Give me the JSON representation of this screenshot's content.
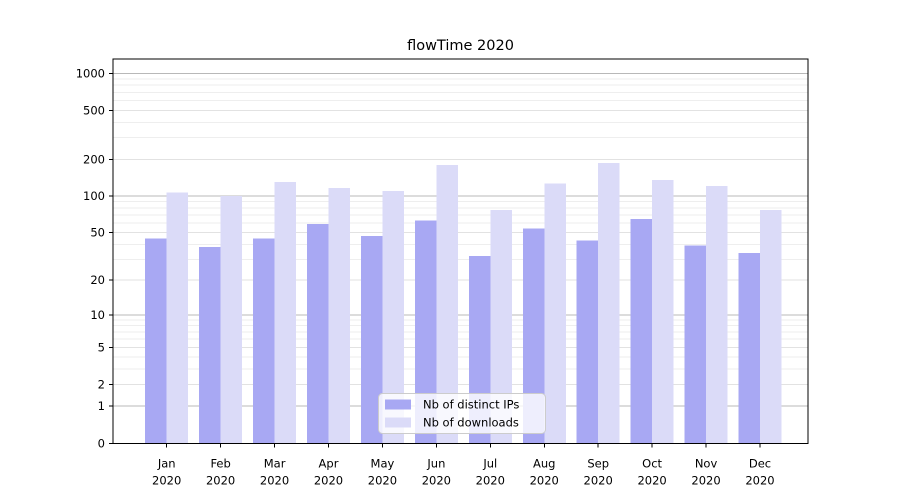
{
  "chart_data": {
    "type": "bar",
    "title": "flowTime 2020",
    "x_months": [
      "Jan",
      "Feb",
      "Mar",
      "Apr",
      "May",
      "Jun",
      "Jul",
      "Aug",
      "Sep",
      "Oct",
      "Nov",
      "Dec"
    ],
    "x_year": "2020",
    "series": [
      {
        "name": "Nb of distinct IPs",
        "color": "#a8a8f3",
        "values": [
          45,
          38,
          45,
          59,
          47,
          63,
          32,
          54,
          43,
          65,
          39,
          34
        ]
      },
      {
        "name": "Nb of downloads",
        "color": "#dbdbf8",
        "values": [
          107,
          100,
          130,
          117,
          110,
          179,
          77,
          127,
          186,
          136,
          121,
          77
        ]
      }
    ],
    "y_axis": {
      "scale": "log1p",
      "ticks": [
        0,
        1,
        2,
        5,
        10,
        20,
        50,
        100,
        200,
        500,
        1000
      ],
      "ylim": [
        0,
        1300
      ]
    },
    "grid": {
      "decade_color": "#b8b8b8",
      "tick_color": "#e2e2e2",
      "minor_color": "#eeeeee",
      "minor_multiples": [
        3,
        4,
        6,
        7,
        8,
        9
      ]
    },
    "legend": {
      "position": "lower-center-inside",
      "bg_alpha": 0.8,
      "border_color": "#cccccc"
    },
    "colors": {
      "spine": "#000000",
      "text": "#000000",
      "background": "#ffffff"
    }
  }
}
